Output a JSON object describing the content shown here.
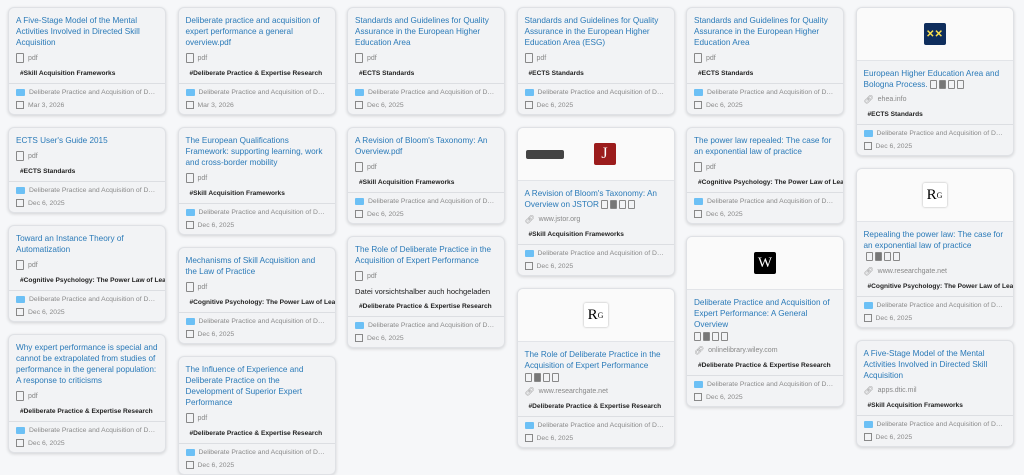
{
  "folder_label": "Deliberate Practice and Acquisition of Dom...",
  "columns": [
    [
      {
        "title": "A Five-Stage Model of the Mental Activities Involved in Directed Skill Acquisition",
        "type": "pdf",
        "tag": "#Skill Acquisition Frameworks",
        "date": "Mar 3, 2026"
      },
      {
        "title": "ECTS User's Guide 2015",
        "type": "pdf",
        "tag": "#ECTS Standards",
        "date": "Dec 6, 2025"
      },
      {
        "title": "Toward an Instance Theory of Automatization",
        "type": "pdf",
        "tag": "#Cognitive Psychology: The Power Law of Learning",
        "date": "Dec 6, 2025"
      },
      {
        "title": "Why expert performance is special and cannot be extrapolated from studies of performance in the general population: A response to criticisms",
        "type": "pdf",
        "tag": "#Deliberate Practice & Expertise Research",
        "date": "Dec 6, 2025"
      }
    ],
    [
      {
        "title": "Deliberate practice and acquisition of expert performance a general overview.pdf",
        "type": "pdf",
        "tag": "#Deliberate Practice & Expertise Research",
        "date": "Mar 3, 2026"
      },
      {
        "title": "The European Qualifications Framework: supporting learning, work and cross-border mobility",
        "type": "pdf",
        "tag": "#Skill Acquisition Frameworks",
        "date": "Dec 6, 2025"
      },
      {
        "title": "Mechanisms of Skill Acquisition and the Law of Practice",
        "type": "pdf",
        "tag": "#Cognitive Psychology: The Power Law of Learning",
        "date": "Dec 6, 2025"
      },
      {
        "title": "The Influence of Experience and Deliberate Practice on the Development of Superior Expert Performance",
        "type": "pdf",
        "tag": "#Deliberate Practice & Expertise Research",
        "date": "Dec 6, 2025"
      }
    ],
    [
      {
        "title": "Standards and Guidelines for Quality Assurance in the European Higher Education Area",
        "type": "pdf",
        "tag": "#ECTS Standards",
        "date": "Dec 6, 2025"
      },
      {
        "title": "A Revision of Bloom's Taxonomy: An Overview.pdf",
        "type": "pdf",
        "tag": "#Skill Acquisition Frameworks",
        "date": "Dec 6, 2025"
      },
      {
        "title": "The Role of Deliberate Practice in the Acquisition of Expert Performance",
        "type": "pdf",
        "note": "Datei vorsichtshalber auch hochgeladen",
        "tag": "#Deliberate Practice & Expertise Research",
        "date": "Dec 6, 2025"
      }
    ],
    [
      {
        "title": "Standards and Guidelines for Quality Assurance in the European Higher Education Area (ESG)",
        "type": "pdf",
        "tag": "#ECTS Standards",
        "date": "Dec 6, 2025"
      },
      {
        "thumb": "jstor",
        "logo_text": "J",
        "title": "A Revision of Bloom's Taxonomy: An Overview on JSTOR",
        "actions": "inline",
        "domain": "www.jstor.org",
        "tag": "#Skill Acquisition Frameworks",
        "date": "Dec 6, 2025"
      },
      {
        "thumb": "rg",
        "logo_text": "R",
        "logo_sup": "G",
        "title": "The Role of Deliberate Practice in the Acquisition of Expert Performance",
        "actions": "block",
        "domain": "www.researchgate.net",
        "tag": "#Deliberate Practice & Expertise Research",
        "date": "Dec 6, 2025"
      }
    ],
    [
      {
        "title": "Standards and Guidelines for Quality Assurance in the European Higher Education Area",
        "type": "pdf",
        "tag": "#ECTS Standards",
        "date": "Dec 6, 2025"
      },
      {
        "title": "The power law repealed: The case for an exponential law of practice",
        "type": "pdf",
        "tag": "#Cognitive Psychology: The Power Law of Learning",
        "date": "Dec 6, 2025"
      },
      {
        "thumb": "w",
        "logo_text": "W",
        "title": "Deliberate Practice and Acquisition of Expert Performance: A General Overview",
        "actions": "block",
        "domain": "onlinelibrary.wiley.com",
        "tag": "#Deliberate Practice & Expertise Research",
        "date": "Dec 6, 2025"
      }
    ],
    [
      {
        "thumb": "ehea",
        "logo_text": "✕✕",
        "title": "European Higher Education Area and Bologna Process.",
        "actions": "inline",
        "domain": "ehea.info",
        "tag": "#ECTS Standards",
        "date": "Dec 6, 2025"
      },
      {
        "thumb": "rg",
        "logo_text": "R",
        "logo_sup": "G",
        "title": "Repealing the power law: The case for an exponential law of practice",
        "actions": "inline",
        "domain": "www.researchgate.net",
        "tag": "#Cognitive Psychology: The Power Law of Learning",
        "date": "Dec 6, 2025"
      },
      {
        "title": "A Five-Stage Model of the Mental Activities Involved in Directed Skill Acquisition",
        "domain": "apps.dtic.mil",
        "tag": "#Skill Acquisition Frameworks",
        "date": "Dec 6, 2025"
      }
    ]
  ]
}
